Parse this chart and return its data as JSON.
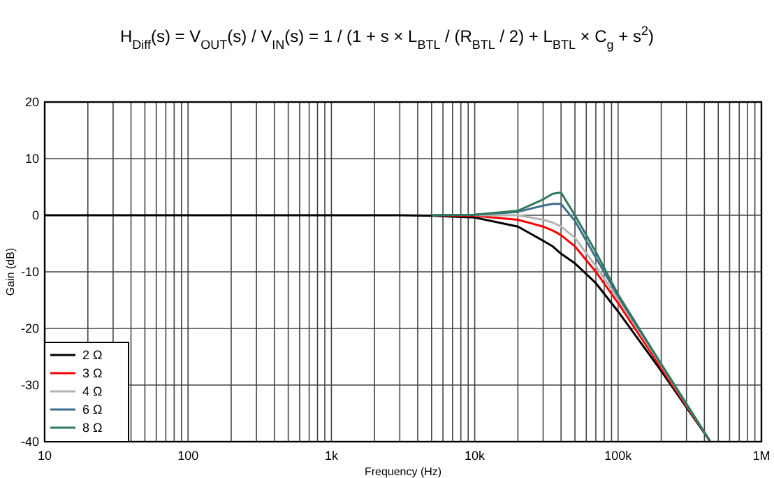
{
  "chart_data": {
    "type": "line",
    "title": "H$_{Diff}$(s) = V$_{OUT}$(s) / V$_{IN}$(s) = 1 / (1 + s × L$_{BTL}$ / (R$_{BTL}$ / 2) + L$_{BTL}$ × C$_{g}$ + s$^{2}$)",
    "xlabel": "Frequency (Hz)",
    "ylabel": "Gain (dB)",
    "log": "x",
    "grid": true,
    "legend": "bottom left",
    "marker": "none",
    "line_style": "solid",
    "x": [
      10,
      1000,
      3000,
      5000,
      10000,
      20000,
      30000,
      35000,
      40000,
      50000,
      70000,
      100000,
      200000,
      440000
    ],
    "xlim": [
      10,
      1000000
    ],
    "xticks": [
      10,
      {
        "value": 20,
        "label": null
      },
      {
        "value": 30,
        "label": null
      },
      {
        "value": 40,
        "label": null
      },
      {
        "value": 50,
        "label": null
      },
      {
        "value": 60,
        "label": null
      },
      {
        "value": 70,
        "label": null
      },
      {
        "value": 80,
        "label": null
      },
      {
        "value": 90,
        "label": null
      },
      100,
      {
        "value": 200,
        "label": null
      },
      {
        "value": 300,
        "label": null
      },
      {
        "value": 400,
        "label": null
      },
      {
        "value": 500,
        "label": null
      },
      {
        "value": 600,
        "label": null
      },
      {
        "value": 700,
        "label": null
      },
      {
        "value": 800,
        "label": null
      },
      {
        "value": 900,
        "label": null
      },
      {
        "value": 1000,
        "label": "1k"
      },
      {
        "value": 2000,
        "label": null
      },
      {
        "value": 3000,
        "label": null
      },
      {
        "value": 4000,
        "label": null
      },
      {
        "value": 5000,
        "label": null
      },
      {
        "value": 6000,
        "label": null
      },
      {
        "value": 7000,
        "label": null
      },
      {
        "value": 8000,
        "label": null
      },
      {
        "value": 9000,
        "label": null
      },
      {
        "value": 10000,
        "label": "10k"
      },
      {
        "value": 20000,
        "label": null
      },
      {
        "value": 30000,
        "label": null
      },
      {
        "value": 40000,
        "label": null
      },
      {
        "value": 50000,
        "label": null
      },
      {
        "value": 60000,
        "label": null
      },
      {
        "value": 70000,
        "label": null
      },
      {
        "value": 80000,
        "label": null
      },
      {
        "value": 90000,
        "label": null
      },
      {
        "value": 100000,
        "label": "100k"
      },
      {
        "value": 200000,
        "label": null
      },
      {
        "value": 300000,
        "label": null
      },
      {
        "value": 400000,
        "label": null
      },
      {
        "value": 500000,
        "label": null
      },
      {
        "value": 600000,
        "label": null
      },
      {
        "value": 700000,
        "label": null
      },
      {
        "value": 800000,
        "label": null
      },
      {
        "value": 900000,
        "label": null
      },
      {
        "value": 1000000,
        "label": "1M"
      }
    ],
    "ylim": [
      -40,
      20
    ],
    "yticks": [
      -40,
      -30,
      -20,
      -10,
      0,
      10,
      20
    ],
    "series": [
      {
        "name": "2 Ω",
        "color": "#000000",
        "values": [
          0,
          0,
          0,
          -0.1,
          -0.4,
          -2,
          -4.5,
          -5.5,
          -6.8,
          -8.5,
          -12,
          -17,
          -27.5,
          -40
        ]
      },
      {
        "name": "3 Ω",
        "color": "#ff0000",
        "values": [
          null,
          null,
          null,
          0,
          -0.1,
          -0.8,
          -2,
          -2.7,
          -3.5,
          -5.5,
          -10,
          -15.5,
          -27,
          -40
        ]
      },
      {
        "name": "4 Ω",
        "color": "#b4b4b4",
        "values": [
          null,
          null,
          null,
          null,
          0,
          0,
          -0.8,
          -1.3,
          -2,
          -4,
          -9,
          -14.8,
          -26.5,
          -40
        ]
      },
      {
        "name": "6 Ω",
        "color": "#3d6e8c",
        "values": [
          null,
          null,
          null,
          0,
          0.1,
          0.6,
          1.7,
          2,
          2,
          -1,
          -7.5,
          -14.3,
          -26.3,
          -40
        ]
      },
      {
        "name": "8 Ω",
        "color": "#2e7a5a",
        "values": [
          null,
          null,
          null,
          0,
          0.1,
          0.8,
          2.8,
          3.8,
          4,
          0,
          -6.5,
          -14,
          -26.3,
          -40
        ]
      }
    ]
  }
}
